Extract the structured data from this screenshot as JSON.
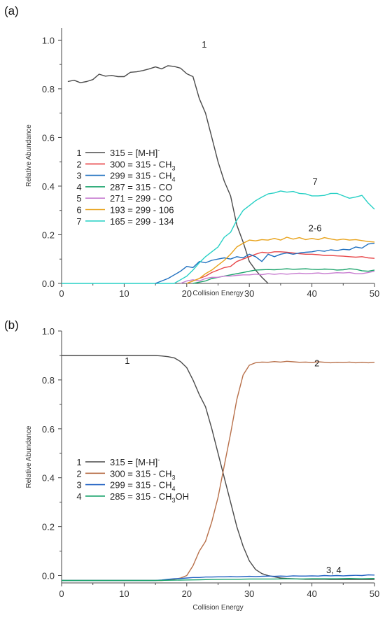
{
  "chart_data": [
    {
      "panel": "(a)",
      "type": "line",
      "xlabel": "Collision Energy",
      "ylabel": "Relative Abundance",
      "xlim": [
        0,
        50
      ],
      "ylim": [
        0,
        1.05
      ],
      "xticks": [
        "0",
        "10",
        "20",
        "30",
        "40",
        "50"
      ],
      "yticks": [
        "0.0",
        "0.2",
        "0.4",
        "0.6",
        "0.8",
        "1.0"
      ],
      "legend": [
        {
          "num": "1",
          "text": "315 = [M-H]",
          "sup": "-",
          "sub": "",
          "after": ""
        },
        {
          "num": "2",
          "text": "300 = 315 - CH",
          "sup": "",
          "sub": "3",
          "after": ""
        },
        {
          "num": "3",
          "text": "299 = 315 - CH",
          "sup": "",
          "sub": "4",
          "after": ""
        },
        {
          "num": "4",
          "text": "287 = 315 - CO",
          "sup": "",
          "sub": "",
          "after": ""
        },
        {
          "num": "5",
          "text": "271 = 299 - CO",
          "sup": "",
          "sub": "",
          "after": ""
        },
        {
          "num": "6",
          "text": "193 = 299 - 106",
          "sup": "",
          "sub": "",
          "after": ""
        },
        {
          "num": "7",
          "text": "165 = 299 - 134",
          "sup": "",
          "sub": "",
          "after": ""
        }
      ],
      "annotations": [
        {
          "text": "1",
          "x": 22.8,
          "y": 0.97
        },
        {
          "text": "7",
          "x": 40.5,
          "y": 0.405
        },
        {
          "text": "2-6",
          "x": 40.5,
          "y": 0.215
        }
      ],
      "series": [
        {
          "color": "#4a4a4a",
          "x": [
            1,
            2,
            3,
            4,
            5,
            6,
            7,
            8,
            9,
            10,
            11,
            12,
            13,
            14,
            15,
            16,
            17,
            18,
            19,
            20,
            21,
            22,
            23,
            24,
            25,
            26,
            27,
            28,
            29,
            30,
            31,
            32,
            33
          ],
          "y": [
            0.83,
            0.835,
            0.825,
            0.83,
            0.838,
            0.86,
            0.852,
            0.855,
            0.85,
            0.85,
            0.868,
            0.87,
            0.875,
            0.882,
            0.89,
            0.882,
            0.895,
            0.892,
            0.885,
            0.862,
            0.85,
            0.76,
            0.7,
            0.6,
            0.5,
            0.42,
            0.36,
            0.24,
            0.17,
            0.09,
            0.055,
            0.025,
            0.0
          ]
        },
        {
          "color": "#e8474a",
          "x": [
            20,
            21,
            22,
            23,
            24,
            25,
            26,
            27,
            28,
            29,
            30,
            31,
            32,
            33,
            34,
            35,
            36,
            37,
            38,
            39,
            40,
            41,
            42,
            43,
            44,
            45,
            46,
            47,
            48,
            49,
            50
          ],
          "y": [
            0.0,
            0.01,
            0.02,
            0.03,
            0.045,
            0.055,
            0.065,
            0.07,
            0.09,
            0.1,
            0.11,
            0.12,
            0.128,
            0.125,
            0.13,
            0.13,
            0.128,
            0.125,
            0.122,
            0.12,
            0.12,
            0.118,
            0.115,
            0.115,
            0.113,
            0.112,
            0.11,
            0.108,
            0.11,
            0.105,
            0.103
          ]
        },
        {
          "color": "#1e6fbf",
          "x": [
            15,
            16,
            17,
            18,
            19,
            20,
            21,
            22,
            23,
            24,
            25,
            26,
            27,
            28,
            29,
            30,
            31,
            32,
            33,
            34,
            35,
            36,
            37,
            38,
            39,
            40,
            41,
            42,
            43,
            44,
            45,
            46,
            47,
            48,
            49,
            50
          ],
          "y": [
            0.0,
            0.01,
            0.02,
            0.035,
            0.05,
            0.07,
            0.065,
            0.09,
            0.085,
            0.095,
            0.1,
            0.105,
            0.1,
            0.11,
            0.105,
            0.12,
            0.11,
            0.09,
            0.12,
            0.11,
            0.12,
            0.125,
            0.12,
            0.125,
            0.128,
            0.13,
            0.135,
            0.132,
            0.138,
            0.135,
            0.14,
            0.138,
            0.15,
            0.145,
            0.162,
            0.165
          ]
        },
        {
          "color": "#1aa36b",
          "x": [
            21,
            22,
            23,
            24,
            25,
            26,
            27,
            28,
            29,
            30,
            31,
            32,
            33,
            34,
            35,
            36,
            37,
            38,
            39,
            40,
            41,
            42,
            43,
            44,
            45,
            46,
            47,
            48,
            49,
            50
          ],
          "y": [
            0.0,
            0.005,
            0.01,
            0.02,
            0.025,
            0.03,
            0.035,
            0.04,
            0.045,
            0.05,
            0.055,
            0.056,
            0.057,
            0.056,
            0.058,
            0.06,
            0.058,
            0.059,
            0.06,
            0.058,
            0.057,
            0.059,
            0.058,
            0.055,
            0.056,
            0.06,
            0.058,
            0.052,
            0.05,
            0.055
          ]
        },
        {
          "color": "#c77cd0",
          "x": [
            19,
            20,
            21,
            22,
            23,
            24,
            25,
            26,
            27,
            28,
            29,
            30,
            31,
            32,
            33,
            34,
            35,
            36,
            37,
            38,
            39,
            40,
            41,
            42,
            43,
            44,
            45,
            46,
            47,
            48,
            49,
            50
          ],
          "y": [
            0.0,
            0.01,
            0.015,
            0.01,
            0.02,
            0.025,
            0.025,
            0.03,
            0.03,
            0.033,
            0.035,
            0.035,
            0.038,
            0.036,
            0.04,
            0.037,
            0.04,
            0.038,
            0.04,
            0.042,
            0.04,
            0.041,
            0.043,
            0.04,
            0.042,
            0.044,
            0.043,
            0.045,
            0.04,
            0.04,
            0.045,
            0.05
          ]
        },
        {
          "color": "#e8a21a",
          "x": [
            20,
            21,
            22,
            23,
            24,
            25,
            26,
            27,
            28,
            29,
            30,
            31,
            32,
            33,
            34,
            35,
            36,
            37,
            38,
            39,
            40,
            41,
            42,
            43,
            44,
            45,
            46,
            47,
            48,
            49,
            50
          ],
          "y": [
            0.0,
            0.01,
            0.02,
            0.04,
            0.055,
            0.075,
            0.095,
            0.12,
            0.15,
            0.165,
            0.178,
            0.175,
            0.18,
            0.178,
            0.185,
            0.178,
            0.19,
            0.182,
            0.188,
            0.18,
            0.185,
            0.18,
            0.188,
            0.183,
            0.178,
            0.182,
            0.178,
            0.18,
            0.176,
            0.172,
            0.17
          ]
        },
        {
          "color": "#27d0c5",
          "x": [
            18,
            19,
            20,
            21,
            22,
            23,
            24,
            25,
            26,
            27,
            28,
            29,
            30,
            31,
            32,
            33,
            34,
            35,
            36,
            37,
            38,
            39,
            40,
            41,
            42,
            43,
            44,
            45,
            46,
            47,
            48,
            49,
            50
          ],
          "y": [
            0.0,
            0.015,
            0.03,
            0.055,
            0.085,
            0.11,
            0.13,
            0.15,
            0.19,
            0.21,
            0.26,
            0.3,
            0.32,
            0.34,
            0.355,
            0.368,
            0.372,
            0.38,
            0.375,
            0.378,
            0.37,
            0.368,
            0.36,
            0.36,
            0.362,
            0.37,
            0.37,
            0.36,
            0.35,
            0.355,
            0.362,
            0.33,
            0.305
          ]
        }
      ],
      "baseline": {
        "color": "#27d0c5",
        "x": [
          0,
          18
        ],
        "y": [
          0,
          0
        ]
      }
    },
    {
      "panel": "(b)",
      "type": "line",
      "xlabel": "Collision Energy",
      "ylabel": "Relative Abundance",
      "xlim": [
        0,
        50
      ],
      "ylim": [
        -0.03,
        1.0
      ],
      "xticks": [
        "0",
        "10",
        "20",
        "30",
        "40",
        "50"
      ],
      "yticks": [
        "0.0",
        "0.2",
        "0.4",
        "0.6",
        "0.8",
        "1.0"
      ],
      "legend": [
        {
          "num": "1",
          "text": "315 = [M-H]",
          "sup": "-",
          "sub": "",
          "after": ""
        },
        {
          "num": "2",
          "text": "300 = 315 - CH",
          "sup": "",
          "sub": "3",
          "after": ""
        },
        {
          "num": "3",
          "text": "299 = 315 - CH",
          "sup": "",
          "sub": "4",
          "after": ""
        },
        {
          "num": "4",
          "text": "285 = 315 - CH",
          "sup": "",
          "sub": "3",
          "after": "OH"
        }
      ],
      "annotations": [
        {
          "text": "1",
          "x": 10.5,
          "y": 0.865
        },
        {
          "text": "2",
          "x": 40.8,
          "y": 0.855
        },
        {
          "text": "3, 4",
          "x": 43.5,
          "y": 0.01
        }
      ],
      "series": [
        {
          "color": "#4a4a4a",
          "x": [
            0,
            1,
            2,
            3,
            4,
            5,
            6,
            7,
            8,
            9,
            10,
            11,
            12,
            13,
            14,
            15,
            16,
            17,
            18,
            19,
            20,
            21,
            22,
            23,
            24,
            25,
            26,
            27,
            28,
            29,
            30,
            31,
            32,
            33,
            34,
            35,
            36,
            37,
            38,
            39,
            40,
            41,
            42,
            43,
            44,
            45,
            46,
            47,
            48,
            49,
            50
          ],
          "y": [
            0.9,
            0.9,
            0.9,
            0.9,
            0.9,
            0.9,
            0.9,
            0.9,
            0.9,
            0.9,
            0.9,
            0.9,
            0.9,
            0.9,
            0.9,
            0.9,
            0.898,
            0.895,
            0.89,
            0.875,
            0.85,
            0.8,
            0.74,
            0.69,
            0.6,
            0.5,
            0.4,
            0.3,
            0.2,
            0.12,
            0.06,
            0.025,
            0.008,
            0.0,
            -0.005,
            -0.01,
            -0.012,
            -0.013,
            -0.014,
            -0.015,
            -0.015,
            -0.015,
            -0.015,
            -0.016,
            -0.016,
            -0.016,
            -0.016,
            -0.016,
            -0.016,
            -0.016,
            -0.016
          ]
        },
        {
          "color": "#b8704a",
          "x": [
            0,
            1,
            2,
            3,
            4,
            5,
            6,
            7,
            8,
            9,
            10,
            11,
            12,
            13,
            14,
            15,
            16,
            17,
            18,
            19,
            20,
            21,
            22,
            23,
            24,
            25,
            26,
            27,
            28,
            29,
            30,
            31,
            32,
            33,
            34,
            35,
            36,
            37,
            38,
            39,
            40,
            41,
            42,
            43,
            44,
            45,
            46,
            47,
            48,
            49,
            50
          ],
          "y": [
            -0.02,
            -0.02,
            -0.02,
            -0.02,
            -0.02,
            -0.02,
            -0.02,
            -0.02,
            -0.02,
            -0.02,
            -0.02,
            -0.02,
            -0.02,
            -0.02,
            -0.02,
            -0.02,
            -0.02,
            -0.018,
            -0.015,
            -0.01,
            0.0,
            0.04,
            0.1,
            0.14,
            0.22,
            0.32,
            0.45,
            0.58,
            0.72,
            0.82,
            0.86,
            0.87,
            0.873,
            0.872,
            0.875,
            0.873,
            0.876,
            0.874,
            0.872,
            0.873,
            0.871,
            0.874,
            0.872,
            0.87,
            0.872,
            0.871,
            0.873,
            0.87,
            0.872,
            0.87,
            0.872
          ]
        },
        {
          "color": "#1e5fc2",
          "x": [
            0,
            5,
            10,
            15,
            16,
            17,
            18,
            19,
            20,
            21,
            22,
            23,
            24,
            25,
            26,
            27,
            28,
            29,
            30,
            31,
            32,
            33,
            34,
            35,
            36,
            37,
            38,
            39,
            40,
            41,
            42,
            43,
            44,
            45,
            46,
            47,
            48,
            49,
            50
          ],
          "y": [
            -0.02,
            -0.02,
            -0.02,
            -0.02,
            -0.018,
            -0.015,
            -0.013,
            -0.012,
            -0.01,
            -0.008,
            -0.008,
            -0.006,
            -0.006,
            -0.005,
            -0.005,
            -0.004,
            -0.005,
            -0.004,
            -0.003,
            -0.004,
            -0.003,
            -0.002,
            -0.003,
            -0.002,
            -0.003,
            -0.001,
            -0.002,
            -0.002,
            -0.001,
            -0.002,
            0.0,
            -0.001,
            0.0,
            -0.001,
            0.0,
            0.001,
            0.0,
            0.003,
            0.002
          ]
        },
        {
          "color": "#1aa36b",
          "x": [
            0,
            5,
            10,
            15,
            20,
            22,
            24,
            26,
            28,
            30,
            32,
            34,
            36,
            38,
            40,
            42,
            44,
            46,
            48,
            50
          ],
          "y": [
            -0.02,
            -0.02,
            -0.02,
            -0.02,
            -0.018,
            -0.017,
            -0.016,
            -0.015,
            -0.015,
            -0.014,
            -0.014,
            -0.014,
            -0.013,
            -0.014,
            -0.013,
            -0.013,
            -0.013,
            -0.012,
            -0.013,
            -0.012
          ]
        }
      ]
    }
  ]
}
